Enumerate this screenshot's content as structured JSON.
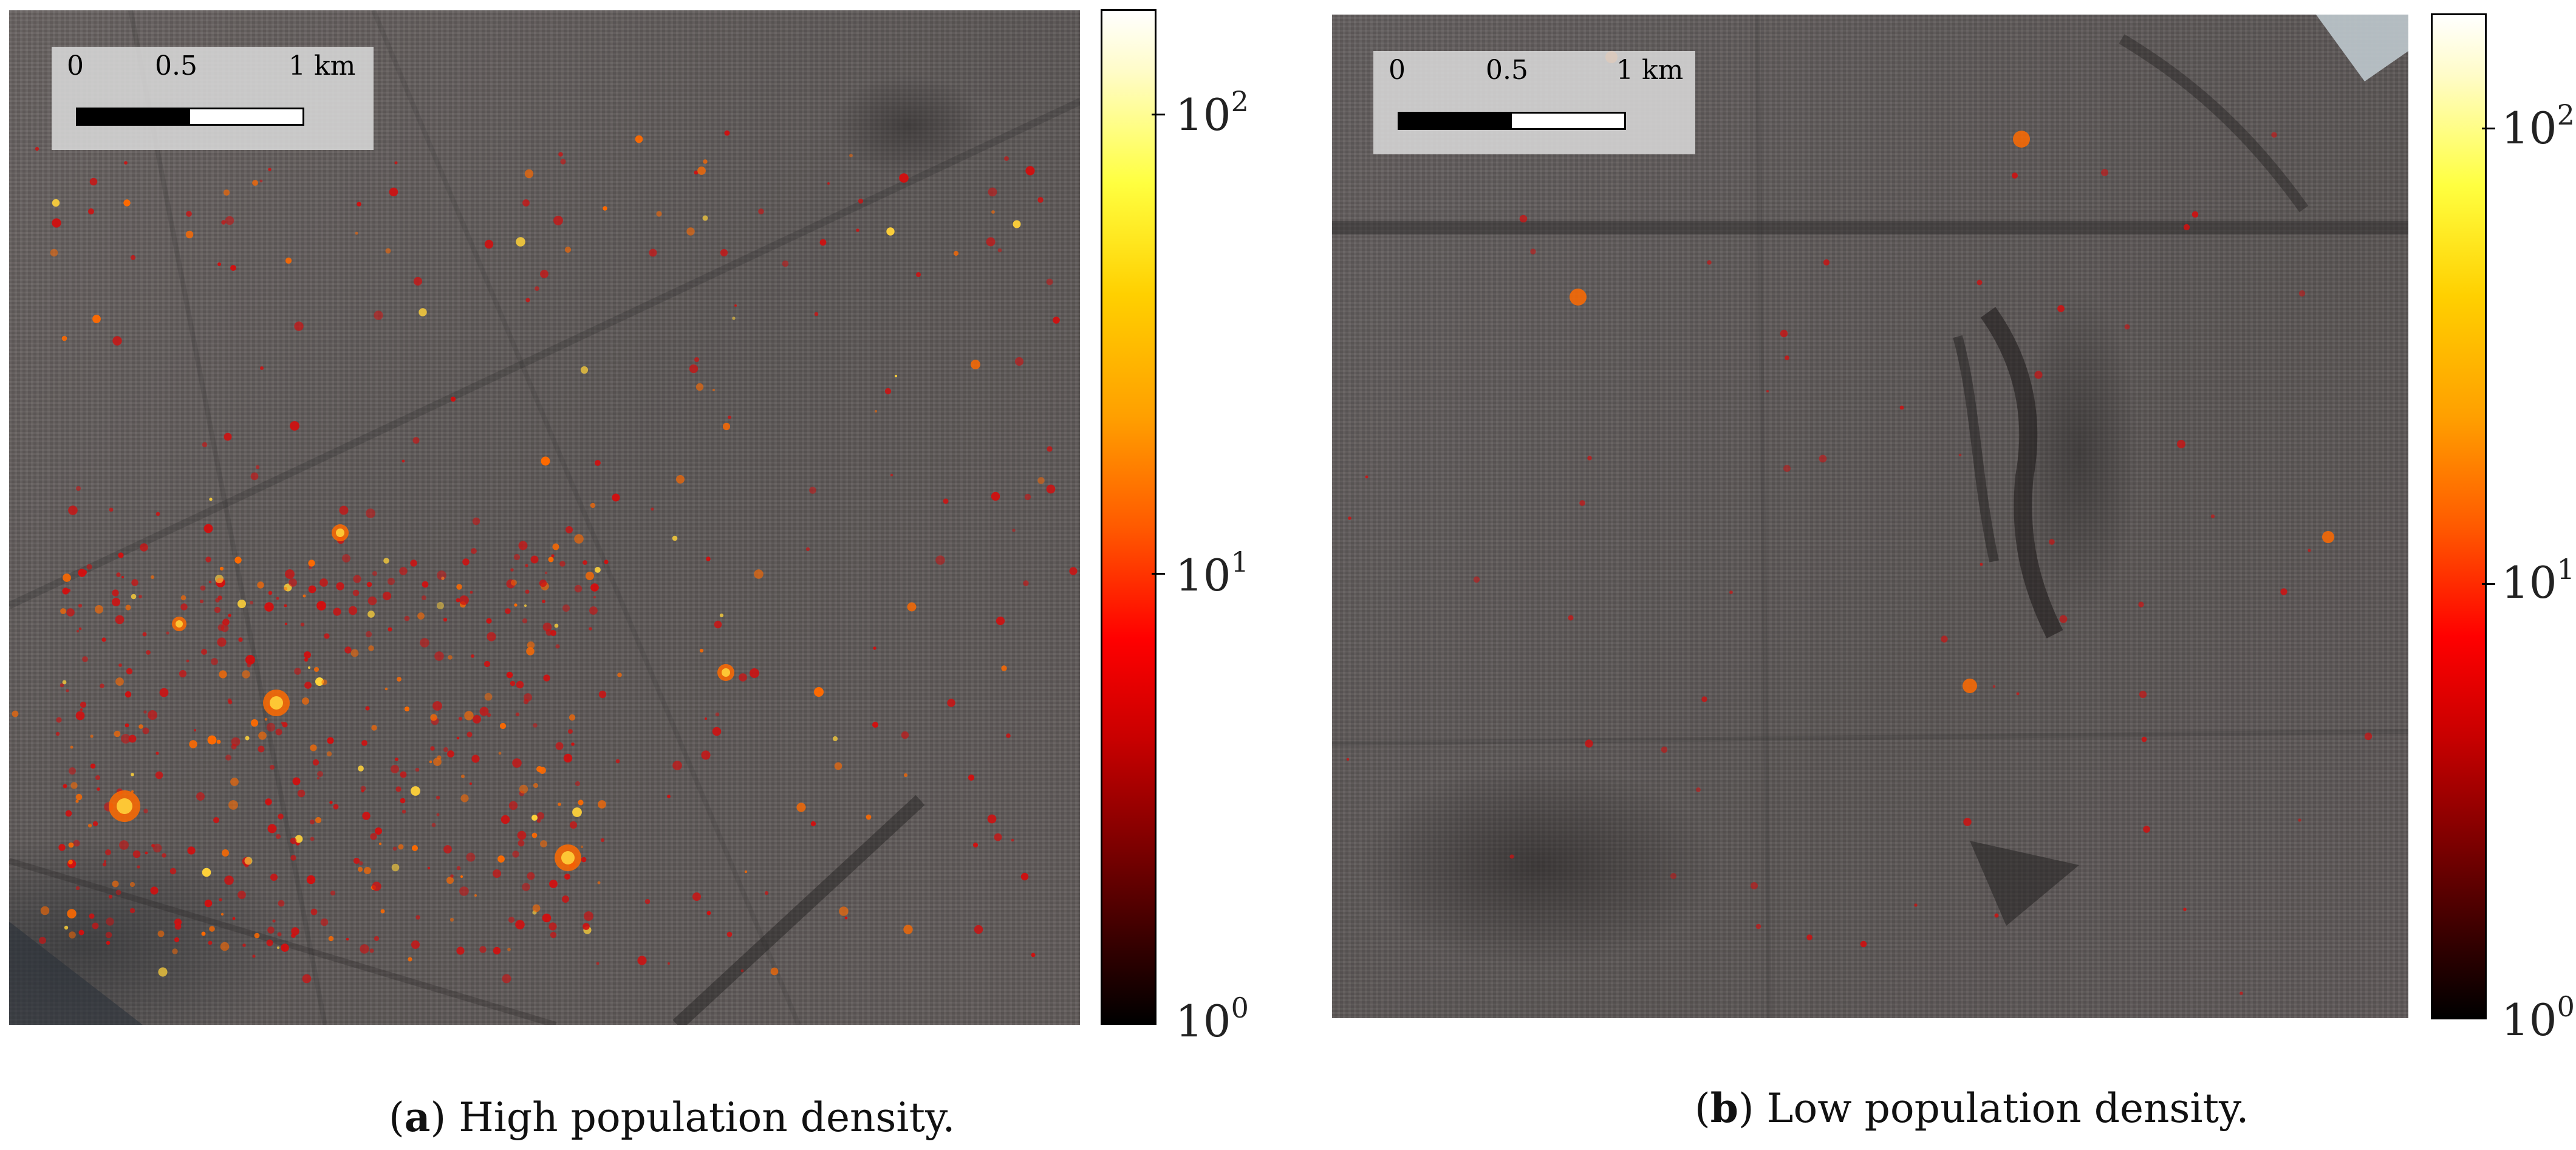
{
  "panels": [
    {
      "id": "a",
      "caption_letter": "a",
      "caption_text": " High population density.",
      "scale_ticks": [
        "0",
        "0.5",
        "1 km"
      ],
      "colorbar_ticks": [
        {
          "base": "10",
          "exp": "2"
        },
        {
          "base": "10",
          "exp": "1"
        },
        {
          "base": "10",
          "exp": "0"
        }
      ]
    },
    {
      "id": "b",
      "caption_letter": "b",
      "caption_text": " Low population density.",
      "scale_ticks": [
        "0",
        "0.5",
        "1 km"
      ],
      "colorbar_ticks": [
        {
          "base": "10",
          "exp": "2"
        },
        {
          "base": "10",
          "exp": "1"
        },
        {
          "base": "10",
          "exp": "0"
        }
      ]
    }
  ],
  "colormap": {
    "name": "hot",
    "scale": "log",
    "range": [
      1,
      200
    ]
  },
  "colors": {
    "map_base": "#615b5a",
    "scalebox_bg": "#d7d7d7",
    "hotspot_low": "#d01010",
    "hotspot_mid": "#ff6a00",
    "hotspot_high": "#ffd23a"
  }
}
